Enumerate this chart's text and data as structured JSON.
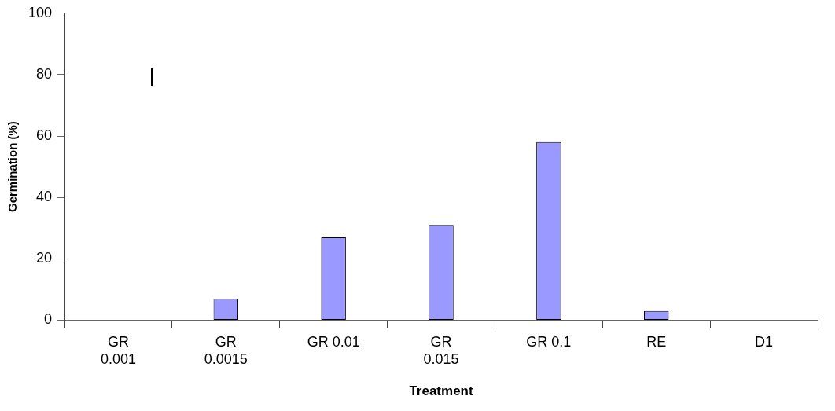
{
  "chart_data": {
    "type": "bar",
    "xlabel": "Treatment",
    "ylabel": "Germination (%)",
    "categories": [
      "GR 0.001",
      "GR 0.0015",
      "GR 0.01",
      "GR 0.015",
      "GR 0.1",
      "RE",
      "D1"
    ],
    "values": [
      0,
      7,
      27,
      31,
      58,
      3,
      0
    ],
    "color": "#9999ff",
    "ylim": [
      0,
      100
    ],
    "yticks": [
      0,
      20,
      40,
      60,
      80,
      100
    ],
    "grid": false,
    "legend": false
  }
}
